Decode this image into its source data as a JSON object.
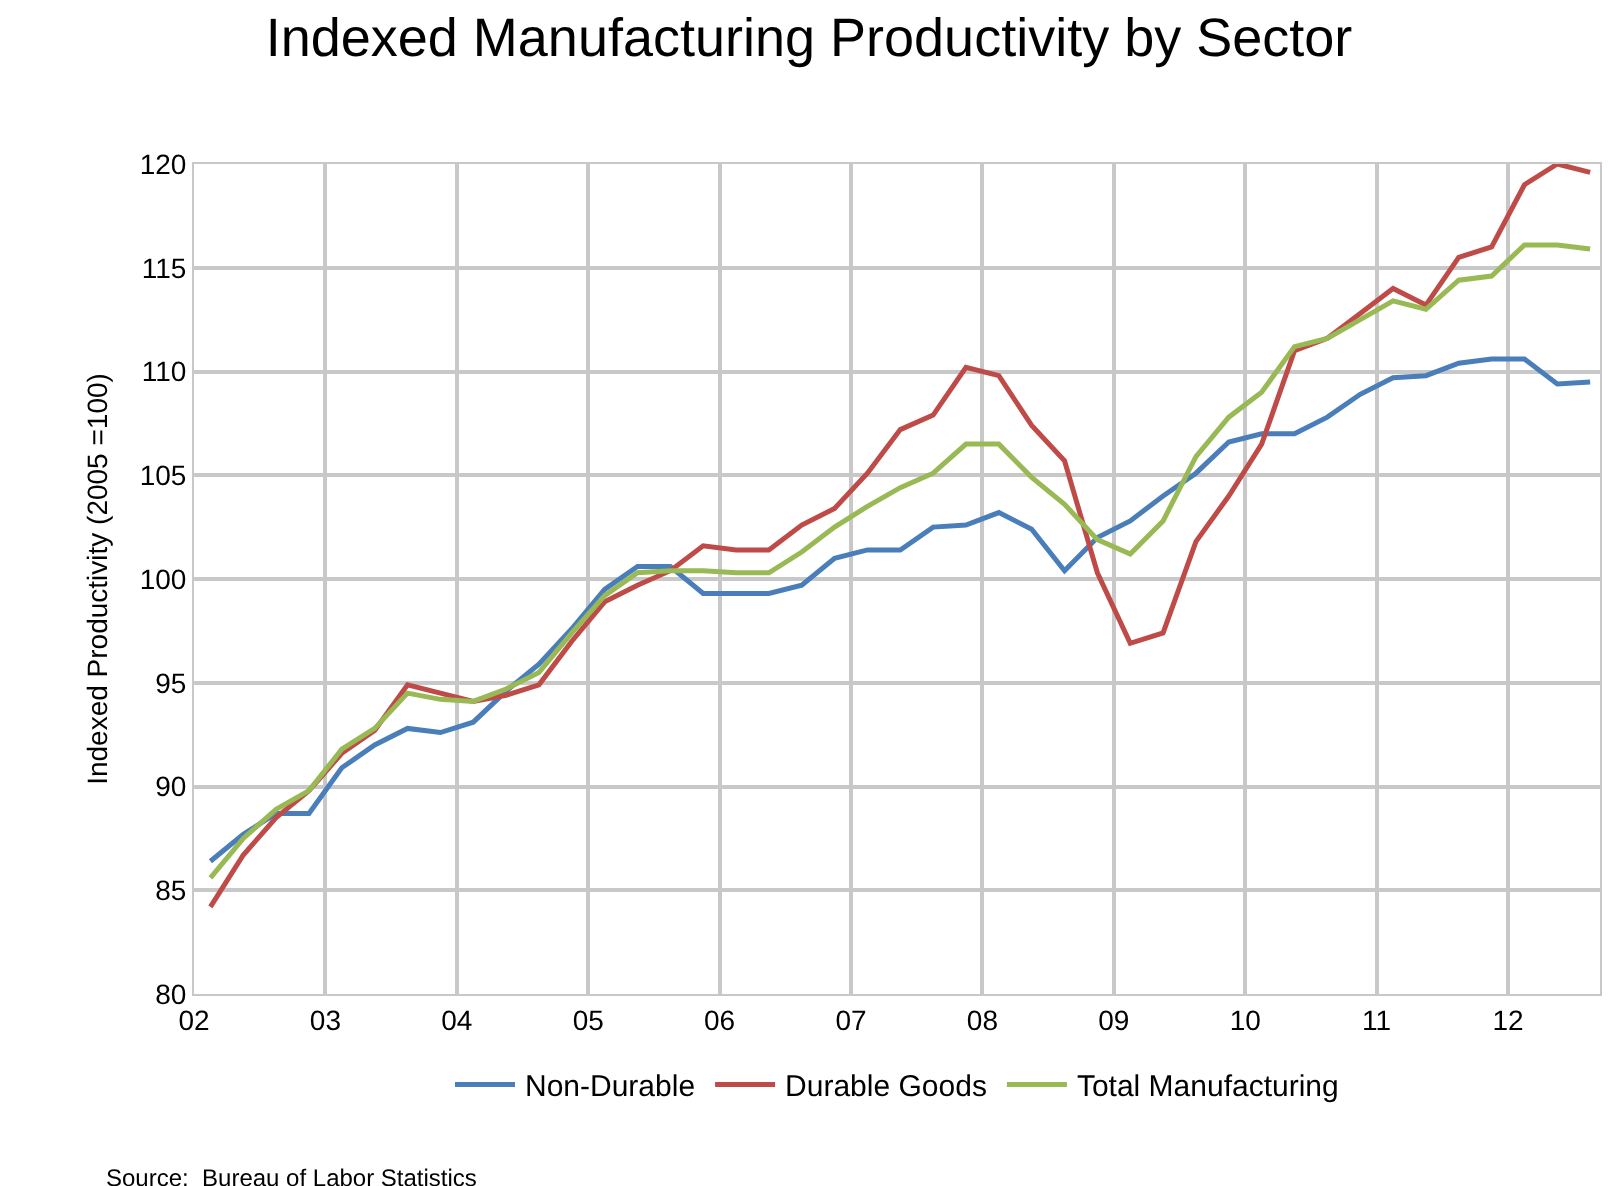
{
  "chart_data": {
    "type": "line",
    "title": "Indexed Manufacturing Productivity by Sector",
    "ylabel": "Indexed Productivity (2005 =100)",
    "annotations": [
      "Source:  Bureau of Labor Statistics"
    ],
    "x": [
      2002.125,
      2002.375,
      2002.625,
      2002.875,
      2003.125,
      2003.375,
      2003.625,
      2003.875,
      2004.125,
      2004.375,
      2004.625,
      2004.875,
      2005.125,
      2005.375,
      2005.625,
      2005.875,
      2006.125,
      2006.375,
      2006.625,
      2006.875,
      2007.125,
      2007.375,
      2007.625,
      2007.875,
      2008.125,
      2008.375,
      2008.625,
      2008.875,
      2009.125,
      2009.375,
      2009.625,
      2009.875,
      2010.125,
      2010.375,
      2010.625,
      2010.875,
      2011.125,
      2011.375,
      2011.625,
      2011.875,
      2012.125,
      2012.375,
      2012.625
    ],
    "series": [
      {
        "name": "Non-Durable",
        "color": "#4a7ebb",
        "values": [
          86.4,
          87.7,
          88.7,
          88.7,
          90.9,
          92.0,
          92.8,
          92.6,
          93.1,
          94.6,
          95.9,
          97.6,
          99.5,
          100.6,
          100.6,
          99.3,
          99.3,
          99.3,
          99.7,
          101.0,
          101.4,
          101.4,
          102.5,
          102.6,
          103.2,
          102.4,
          100.4,
          102.0,
          102.8,
          104.0,
          105.1,
          106.6,
          107.0,
          107.0,
          107.8,
          108.9,
          109.7,
          109.8,
          110.4,
          110.6,
          110.6,
          109.4,
          109.5
        ]
      },
      {
        "name": "Durable Goods",
        "color": "#be4b48",
        "values": [
          84.2,
          86.7,
          88.5,
          89.8,
          91.6,
          92.7,
          94.9,
          94.5,
          94.1,
          94.4,
          94.9,
          97.0,
          98.9,
          99.7,
          100.4,
          101.6,
          101.4,
          101.4,
          102.6,
          103.4,
          105.1,
          107.2,
          107.9,
          110.2,
          109.8,
          107.4,
          105.7,
          100.3,
          96.9,
          97.4,
          101.8,
          104.0,
          106.5,
          111.0,
          111.6,
          112.8,
          114.0,
          113.2,
          115.5,
          116.0,
          119.0,
          120.0,
          119.6
        ]
      },
      {
        "name": "Total Manufacturing",
        "color": "#98b954",
        "values": [
          85.6,
          87.5,
          88.9,
          89.8,
          91.8,
          92.8,
          94.5,
          94.2,
          94.1,
          94.7,
          95.5,
          97.4,
          99.2,
          100.3,
          100.4,
          100.4,
          100.3,
          100.3,
          101.3,
          102.5,
          103.5,
          104.4,
          105.1,
          106.5,
          106.5,
          104.9,
          103.6,
          101.9,
          101.2,
          102.8,
          105.9,
          107.8,
          109.0,
          111.2,
          111.6,
          112.5,
          113.4,
          113.0,
          114.4,
          114.6,
          116.1,
          116.1,
          115.9
        ]
      }
    ],
    "xlim": [
      2002,
      2012.7
    ],
    "xticks": [
      {
        "value": 2002,
        "label": "02"
      },
      {
        "value": 2003,
        "label": "03"
      },
      {
        "value": 2004,
        "label": "04"
      },
      {
        "value": 2005,
        "label": "05"
      },
      {
        "value": 2006,
        "label": "06"
      },
      {
        "value": 2007,
        "label": "07"
      },
      {
        "value": 2008,
        "label": "08"
      },
      {
        "value": 2009,
        "label": "09"
      },
      {
        "value": 2010,
        "label": "10"
      },
      {
        "value": 2011,
        "label": "11"
      },
      {
        "value": 2012,
        "label": "12"
      }
    ],
    "ylim": [
      80,
      120
    ],
    "yticks": [
      80,
      85,
      90,
      95,
      100,
      105,
      110,
      115,
      120
    ],
    "grid": true,
    "legend": "bottom",
    "marker": "none",
    "line_style": "solid"
  }
}
